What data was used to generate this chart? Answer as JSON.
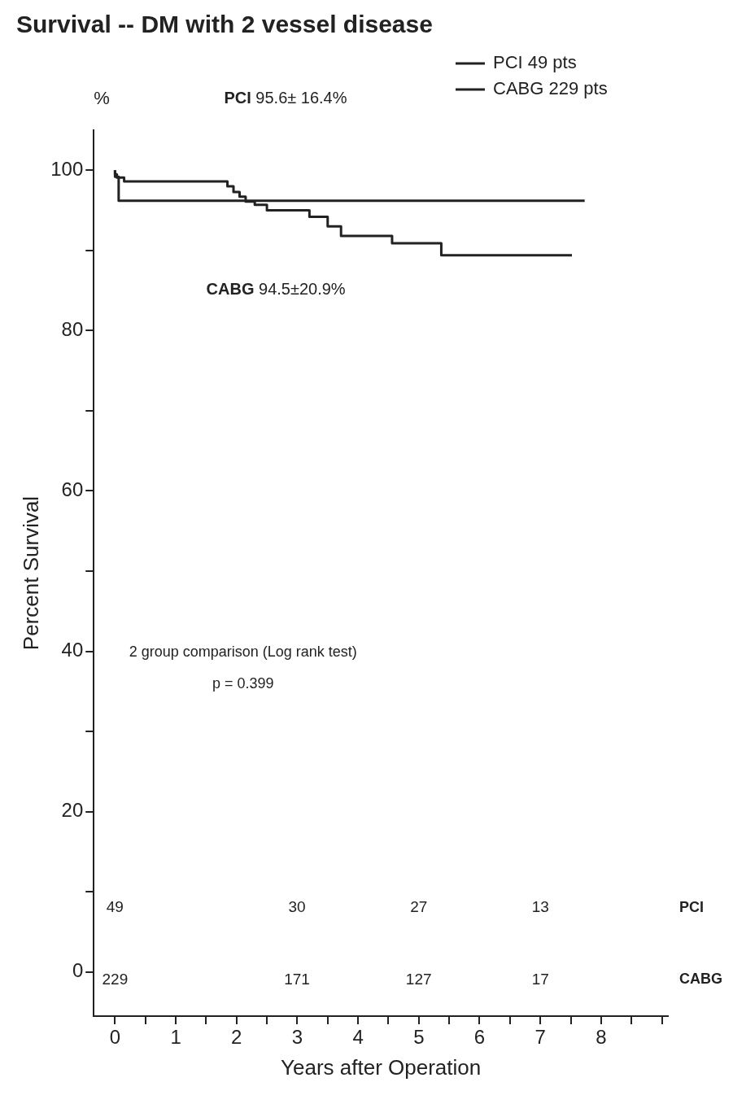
{
  "chart_data": {
    "type": "step",
    "title": "Survival -- DM with 2 vessel disease",
    "xlabel": "Years after Operation",
    "ylabel": "Percent Survival",
    "series": [
      {
        "name": "PCI 49 pts",
        "color": "#222222",
        "x": [
          0,
          0.06,
          0.37,
          7.73
        ],
        "values": [
          100,
          99.2,
          96.2,
          96.2
        ]
      },
      {
        "name": "CABG 229 pts",
        "color": "#222222",
        "x": [
          0,
          0.03,
          0.15,
          1.85,
          1.95,
          2.05,
          2.15,
          2.3,
          2.5,
          3.2,
          3.5,
          3.72,
          4.56,
          5.37,
          6.25,
          7.52
        ],
        "values": [
          100,
          99.5,
          99.1,
          98.6,
          98,
          97.3,
          96.7,
          96.1,
          95.7,
          95,
          94.2,
          93,
          91.8,
          90.9,
          89.4,
          89.4
        ]
      }
    ],
    "xlim": [
      -0.35,
      9.1
    ],
    "xticks": [
      0,
      {
        "value": 0.5,
        "label": null
      },
      1,
      {
        "value": 1.5,
        "label": null
      },
      2,
      {
        "value": 2.5,
        "label": null
      },
      3,
      {
        "value": 3.5,
        "label": null
      },
      4,
      {
        "value": 4.5,
        "label": null
      },
      5,
      {
        "value": 5.5,
        "label": null
      },
      6,
      {
        "value": 6.5,
        "label": null
      },
      7,
      {
        "value": 7.5,
        "label": null
      },
      8,
      {
        "value": 8.5,
        "label": null
      },
      {
        "value": 9,
        "label": null
      }
    ],
    "ylim": [
      -5.5,
      105
    ],
    "yticks": [
      0,
      {
        "value": 10,
        "label": null
      },
      20,
      {
        "value": 30,
        "label": null
      },
      40,
      {
        "value": 50,
        "label": null
      },
      60,
      {
        "value": 70,
        "label": null
      },
      80,
      {
        "value": 90,
        "label": null
      },
      100
    ],
    "legend": "top right",
    "grid": false,
    "line_style": "solid",
    "marker": "none",
    "annotations": [
      "%",
      "PCI 95.6± 16.4%",
      "CABG 94.5±20.9%",
      "2 group comparison (Log rank test)",
      "p = 0.399",
      "PCI",
      "CABG",
      "49",
      "30",
      "27",
      "13",
      "229",
      "171",
      "127",
      "17"
    ]
  }
}
